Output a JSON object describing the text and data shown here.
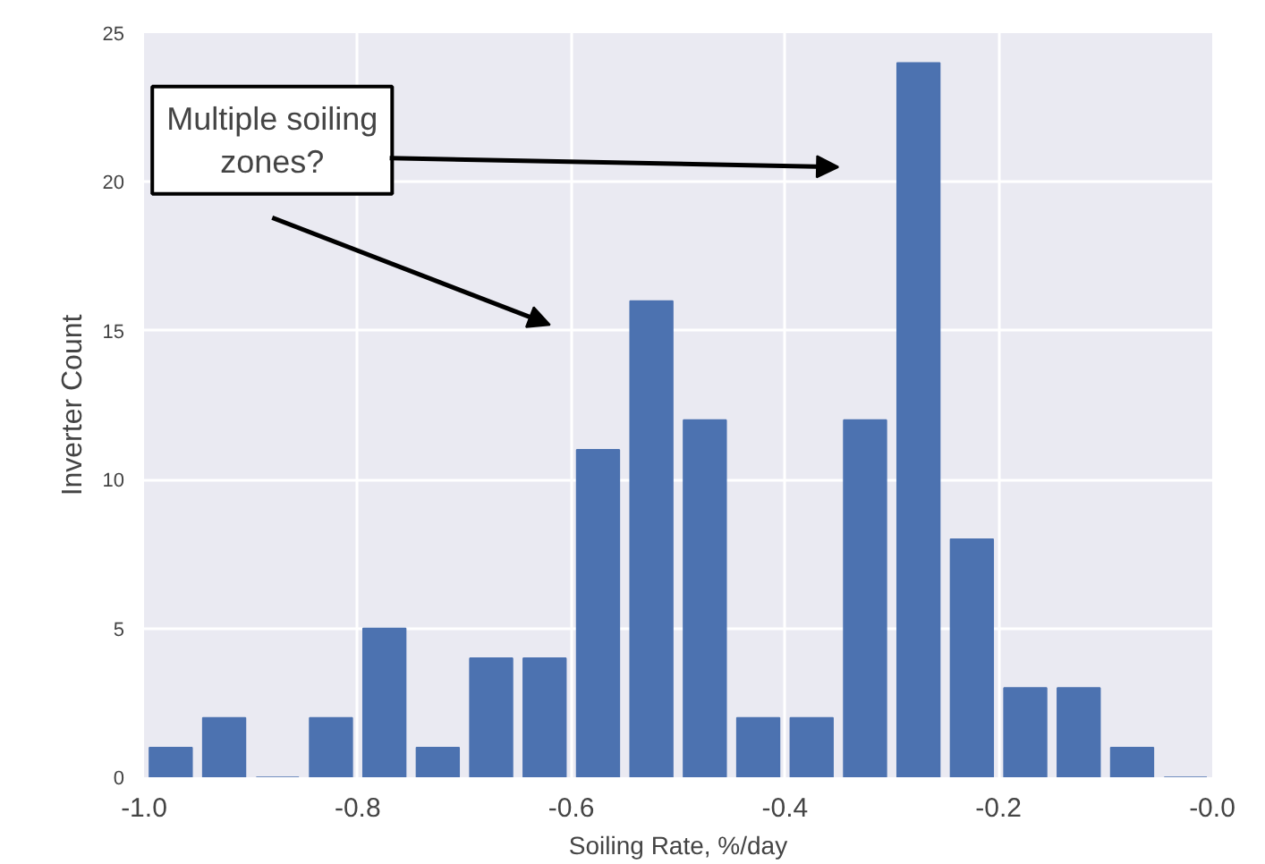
{
  "chart_data": {
    "type": "histogram",
    "xlabel": "Soiling Rate, %/day",
    "ylabel": "Inverter Count",
    "bins": [
      -1.0,
      -0.95,
      -0.9,
      -0.85,
      -0.8,
      -0.75,
      -0.7,
      -0.65,
      -0.6,
      -0.55,
      -0.5,
      -0.45,
      -0.4,
      -0.35,
      -0.3,
      -0.25,
      -0.2,
      -0.15,
      -0.1,
      -0.05,
      0.0
    ],
    "values": [
      1,
      2,
      0,
      2,
      5,
      1,
      4,
      4,
      11,
      16,
      12,
      2,
      2,
      12,
      24,
      8,
      3,
      3,
      1,
      0
    ],
    "color": "#4c72b0",
    "xlim": [
      -1.0,
      0.0
    ],
    "xticks": [
      {
        "value": -1.0,
        "label": "-1.0"
      },
      {
        "value": -0.8,
        "label": "-0.8"
      },
      {
        "value": -0.6,
        "label": "-0.6"
      },
      {
        "value": -0.4,
        "label": "-0.4"
      },
      {
        "value": -0.2,
        "label": "-0.2"
      },
      {
        "value": 0.0,
        "label": "-0.0"
      }
    ],
    "ylim": [
      0,
      25
    ],
    "yticks": [
      0,
      5,
      10,
      15,
      20,
      25
    ],
    "grid": true,
    "annotations": [
      "Multiple soiling\nzones?"
    ]
  }
}
